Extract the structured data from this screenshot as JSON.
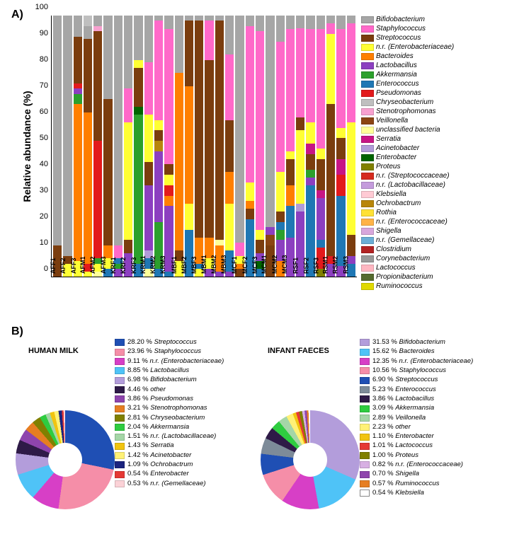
{
  "panelA": {
    "label": "A)",
    "type": "stacked-bar",
    "ylabel": "Relative abundance (%)",
    "ylim": [
      0,
      100
    ],
    "ytick_step": 10,
    "legend": [
      {
        "name": "Bifidobacterium",
        "color": "#a6a6a6"
      },
      {
        "name": "Staphylococcus",
        "color": "#ff69c9"
      },
      {
        "name": "Streptococcus",
        "color": "#7b3d0e"
      },
      {
        "name": "n.r. (Enterobacteriaceae)",
        "color": "#ffff33"
      },
      {
        "name": "Bacteroides",
        "color": "#ff7f00"
      },
      {
        "name": "Lactobacillus",
        "color": "#8c3fc0"
      },
      {
        "name": "Akkermansia",
        "color": "#2ca02c"
      },
      {
        "name": "Enterococcus",
        "color": "#1f77b4"
      },
      {
        "name": "Pseudomonas",
        "color": "#e31a1c"
      },
      {
        "name": "Chryseobacterium",
        "color": "#bfbfbf"
      },
      {
        "name": "Stenotrophomonas",
        "color": "#f7a1cf"
      },
      {
        "name": "Veillonella",
        "color": "#8b4513"
      },
      {
        "name": "unclassified bacteria",
        "color": "#ffff99"
      },
      {
        "name": "Serratia",
        "color": "#c71585"
      },
      {
        "name": "Acinetobacter",
        "color": "#b19cd9"
      },
      {
        "name": "Enterobacter",
        "color": "#006400"
      },
      {
        "name": "Proteus",
        "color": "#808000"
      },
      {
        "name": "n.r. (Streptococcaceae)",
        "color": "#d52b1e"
      },
      {
        "name": "n.r. (Lactobacillaceae)",
        "color": "#c49bdc"
      },
      {
        "name": "Klebsiella",
        "color": "#ffcad4"
      },
      {
        "name": "Ochrobactrum",
        "color": "#b8860b"
      },
      {
        "name": "Rothia",
        "color": "#ffe135"
      },
      {
        "name": "n.r. (Enterococcaceae)",
        "color": "#ffb347"
      },
      {
        "name": "Shigella",
        "color": "#d8a7dc"
      },
      {
        "name": "n.r. (Gemellaceae)",
        "color": "#6baed6"
      },
      {
        "name": "Clostridium",
        "color": "#b22222"
      },
      {
        "name": "Corynebacterium",
        "color": "#999999"
      },
      {
        "name": "Lactococcus",
        "color": "#ffb6c1"
      },
      {
        "name": "Propionibacterium",
        "color": "#556b2f"
      },
      {
        "name": "Ruminococcus",
        "color": "#e0d900"
      }
    ],
    "samples": [
      "AFF1",
      "AFF2",
      "AFF3",
      "AFM1",
      "AFM2",
      "AFM3",
      "KRF1",
      "KRF2",
      "KRF3",
      "KRM1",
      "KRM2",
      "KRM3",
      "MBF1",
      "MBF2",
      "MBF3",
      "MBM1",
      "MBM2",
      "MBM3",
      "MCF1",
      "MCF2",
      "MCF3",
      "MCM1",
      "MCM2",
      "MCM3",
      "RSF1",
      "RSF2",
      "RSF3",
      "RSM1",
      "RSM2",
      "RSM3"
    ],
    "stacks": [
      [
        [
          "Streptococcus",
          12
        ],
        [
          "Bifidobacterium",
          88
        ]
      ],
      [
        [
          "n.r. (Enterobacteriaceae)",
          5
        ],
        [
          "Streptococcus",
          3
        ],
        [
          "Bifidobacterium",
          92
        ]
      ],
      [
        [
          "n.r. (Enterobacteriaceae)",
          6
        ],
        [
          "Bacteroides",
          60
        ],
        [
          "Akkermansia",
          4
        ],
        [
          "Lactobacillus",
          2
        ],
        [
          "Pseudomonas",
          2
        ],
        [
          "Streptococcus",
          18
        ],
        [
          "Bifidobacterium",
          8
        ]
      ],
      [
        [
          "n.r. (Enterobacteriaceae)",
          2
        ],
        [
          "Pseudomonas",
          3
        ],
        [
          "Bacteroides",
          58
        ],
        [
          "Streptococcus",
          28
        ],
        [
          "Bifidobacterium",
          5
        ],
        [
          "Chryseobacterium",
          4
        ]
      ],
      [
        [
          "unclassified bacteria",
          2
        ],
        [
          "n.r. (Enterobacteriaceae)",
          3
        ],
        [
          "Akkermansia",
          2
        ],
        [
          "Pseudomonas",
          45
        ],
        [
          "Streptococcus",
          42
        ],
        [
          "Stenotrophomonas",
          2
        ],
        [
          "Bifidobacterium",
          4
        ]
      ],
      [
        [
          "Enterococcus",
          3
        ],
        [
          "n.r. (Enterobacteriaceae)",
          4
        ],
        [
          "Bacteroides",
          5
        ],
        [
          "Streptococcus",
          56
        ],
        [
          "Bifidobacterium",
          32
        ]
      ],
      [
        [
          "Lactobacillus",
          3
        ],
        [
          "Akkermansia",
          2
        ],
        [
          "Enterococcus",
          2
        ],
        [
          "Staphylococcus",
          5
        ],
        [
          "Bifidobacterium",
          88
        ]
      ],
      [
        [
          "Lactobacillus",
          9
        ],
        [
          "Streptococcus",
          5
        ],
        [
          "n.r. (Enterobacteriaceae)",
          45
        ],
        [
          "Staphylococcus",
          13
        ],
        [
          "Bifidobacterium",
          28
        ]
      ],
      [
        [
          "Enterococcus",
          5
        ],
        [
          "Akkermansia",
          57
        ],
        [
          "Enterobacter",
          3
        ],
        [
          "Streptococcus",
          15
        ],
        [
          "n.r. (Enterobacteriaceae)",
          3
        ],
        [
          "Bifidobacterium",
          17
        ]
      ],
      [
        [
          "unclassified bacteria",
          3
        ],
        [
          "Enterococcus",
          4
        ],
        [
          "Acinetobacter",
          3
        ],
        [
          "Lactobacillus",
          25
        ],
        [
          "Streptococcus",
          9
        ],
        [
          "n.r. (Enterobacteriaceae)",
          18
        ],
        [
          "Staphylococcus",
          20
        ],
        [
          "Bifidobacterium",
          18
        ]
      ],
      [
        [
          "Enterococcus",
          3
        ],
        [
          "Akkermansia",
          18
        ],
        [
          "Lactobacillus",
          27
        ],
        [
          "Ochrobactrum",
          4
        ],
        [
          "Streptococcus",
          4
        ],
        [
          "n.r. (Enterobacteriaceae)",
          4
        ],
        [
          "Staphylococcus",
          38
        ],
        [
          "Bifidobacterium",
          2
        ]
      ],
      [
        [
          "Enterococcus",
          2
        ],
        [
          "Lactobacillus",
          25
        ],
        [
          "Bacteroides",
          4
        ],
        [
          "Pseudomonas",
          4
        ],
        [
          "n.r. (Enterobacteriaceae)",
          4
        ],
        [
          "Streptococcus",
          4
        ],
        [
          "Staphylococcus",
          52
        ],
        [
          "Bifidobacterium",
          5
        ]
      ],
      [
        [
          "n.r. (Enterobacteriaceae)",
          6
        ],
        [
          "Streptococcus",
          4
        ],
        [
          "Bacteroides",
          68
        ],
        [
          "Bifidobacterium",
          22
        ]
      ],
      [
        [
          "Enterococcus",
          18
        ],
        [
          "n.r. (Enterobacteriaceae)",
          10
        ],
        [
          "Bacteroides",
          45
        ],
        [
          "Streptococcus",
          25
        ],
        [
          "Bifidobacterium",
          2
        ]
      ],
      [
        [
          "n.r. (Enterobacteriaceae)",
          3
        ],
        [
          "Enterococcus",
          2
        ],
        [
          "Bacteroides",
          10
        ],
        [
          "Streptococcus",
          83
        ],
        [
          "Bifidobacterium",
          2
        ]
      ],
      [
        [
          "Lactobacillus",
          3
        ],
        [
          "n.r. (Enterobacteriaceae)",
          4
        ],
        [
          "Bacteroides",
          8
        ],
        [
          "Streptococcus",
          68
        ],
        [
          "Staphylococcus",
          15
        ],
        [
          "Bifidobacterium",
          2
        ]
      ],
      [
        [
          "Lactobacillus",
          2
        ],
        [
          "Bacteroides",
          10
        ],
        [
          "unclassified bacteria",
          2
        ],
        [
          "Streptococcus",
          84
        ],
        [
          "Bifidobacterium",
          2
        ]
      ],
      [
        [
          "Lactobacillus",
          2
        ],
        [
          "Enterococcus",
          8
        ],
        [
          "n.r. (Enterobacteriaceae)",
          18
        ],
        [
          "Bacteroides",
          12
        ],
        [
          "Streptococcus",
          20
        ],
        [
          "Staphylococcus",
          25
        ],
        [
          "Bifidobacterium",
          15
        ]
      ],
      [
        [
          "Streptococcus",
          3
        ],
        [
          "Bacteroides",
          2
        ],
        [
          "n.r. (Enterobacteriaceae)",
          3
        ],
        [
          "Staphylococcus",
          5
        ],
        [
          "Bifidobacterium",
          87
        ]
      ],
      [
        [
          "Enterococcus",
          22
        ],
        [
          "Streptococcus",
          4
        ],
        [
          "Bacteroides",
          3
        ],
        [
          "n.r. (Enterobacteriaceae)",
          7
        ],
        [
          "Staphylococcus",
          60
        ],
        [
          "Bifidobacterium",
          4
        ]
      ],
      [
        [
          "Enterococcus",
          3
        ],
        [
          "Enterobacter",
          3
        ],
        [
          "Lactobacillus",
          3
        ],
        [
          "Streptococcus",
          5
        ],
        [
          "n.r. (Enterobacteriaceae)",
          4
        ],
        [
          "Staphylococcus",
          76
        ],
        [
          "Bifidobacterium",
          6
        ]
      ],
      [
        [
          "Streptococcus",
          12
        ],
        [
          "Veillonella",
          4
        ],
        [
          "Lactobacillus",
          3
        ],
        [
          "Bifidobacterium",
          81
        ]
      ],
      [
        [
          "Bacteroides",
          6
        ],
        [
          "Lactobacillus",
          8
        ],
        [
          "Akkermansia",
          4
        ],
        [
          "Enterococcus",
          3
        ],
        [
          "Streptococcus",
          4
        ],
        [
          "n.r. (Enterobacteriaceae)",
          15
        ],
        [
          "Staphylococcus",
          50
        ],
        [
          "Bifidobacterium",
          10
        ]
      ],
      [
        [
          "Lactobacillus",
          15
        ],
        [
          "Enterococcus",
          12
        ],
        [
          "Bacteroides",
          8
        ],
        [
          "Streptococcus",
          10
        ],
        [
          "n.r. (Enterobacteriaceae)",
          3
        ],
        [
          "Staphylococcus",
          47
        ],
        [
          "Bifidobacterium",
          5
        ]
      ],
      [
        [
          "Lactobacillus",
          25
        ],
        [
          "Acinetobacter",
          3
        ],
        [
          "n.r. (Enterobacteriaceae)",
          28
        ],
        [
          "Streptococcus",
          5
        ],
        [
          "Staphylococcus",
          34
        ],
        [
          "Bifidobacterium",
          5
        ]
      ],
      [
        [
          "Enterococcus",
          35
        ],
        [
          "Lactobacillus",
          3
        ],
        [
          "Akkermansia",
          3
        ],
        [
          "Streptococcus",
          6
        ],
        [
          "Serratia",
          4
        ],
        [
          "n.r. (Enterobacteriaceae)",
          8
        ],
        [
          "Staphylococcus",
          36
        ],
        [
          "Bifidobacterium",
          5
        ]
      ],
      [
        [
          "Proteus",
          3
        ],
        [
          "Pseudomonas",
          8
        ],
        [
          "Enterococcus",
          3
        ],
        [
          "Lactobacillus",
          16
        ],
        [
          "Serratia",
          3
        ],
        [
          "Streptococcus",
          12
        ],
        [
          "n.r. (Enterobacteriaceae)",
          4
        ],
        [
          "Staphylococcus",
          46
        ],
        [
          "Bifidobacterium",
          5
        ]
      ],
      [
        [
          "Lactobacillus",
          5
        ],
        [
          "Pseudomonas",
          3
        ],
        [
          "Streptococcus",
          58
        ],
        [
          "n.r. (Enterobacteriaceae)",
          27
        ],
        [
          "Staphylococcus",
          4
        ],
        [
          "Bifidobacterium",
          3
        ]
      ],
      [
        [
          "Lactobacillus",
          4
        ],
        [
          "Enterococcus",
          27
        ],
        [
          "Pseudomonas",
          8
        ],
        [
          "Serratia",
          6
        ],
        [
          "Streptococcus",
          8
        ],
        [
          "n.r. (Enterobacteriaceae)",
          4
        ],
        [
          "Staphylococcus",
          38
        ],
        [
          "Bifidobacterium",
          5
        ]
      ],
      [
        [
          "Enterococcus",
          5
        ],
        [
          "Lactobacillus",
          3
        ],
        [
          "Streptococcus",
          8
        ],
        [
          "n.r. (Enterobacteriaceae)",
          43
        ],
        [
          "Staphylococcus",
          38
        ],
        [
          "Bifidobacterium",
          3
        ]
      ]
    ]
  },
  "panelB": {
    "label": "B)",
    "left": {
      "title": "HUMAN MILK",
      "items": [
        {
          "pct": 28.2,
          "label": "Streptococcus",
          "color": "#1f4fb4"
        },
        {
          "pct": 23.96,
          "label": "Staphylococcus",
          "color": "#f58ea8"
        },
        {
          "pct": 9.11,
          "label": "n.r. (Enterobacteriaceae)",
          "color": "#d73fc6"
        },
        {
          "pct": 8.85,
          "label": "Lactobacillus",
          "color": "#4fc3f7"
        },
        {
          "pct": 6.98,
          "label": "Bifidobacterium",
          "color": "#b39ddb"
        },
        {
          "pct": 4.46,
          "label": "other",
          "color": "#2e1a47"
        },
        {
          "pct": 3.86,
          "label": "Pseudomonas",
          "color": "#8e44ad"
        },
        {
          "pct": 3.21,
          "label": "Stenotrophomonas",
          "color": "#e67e22"
        },
        {
          "pct": 2.81,
          "label": "Chryseobacterium",
          "color": "#808000"
        },
        {
          "pct": 2.04,
          "label": "Akkermansia",
          "color": "#2ecc40"
        },
        {
          "pct": 1.51,
          "label": "n.r. (Lactobacillaceae)",
          "color": "#a5d6a7"
        },
        {
          "pct": 1.43,
          "label": "Serratia",
          "color": "#f1c40f"
        },
        {
          "pct": 1.42,
          "label": "Acinetobacter",
          "color": "#fff176"
        },
        {
          "pct": 1.09,
          "label": "Ochrobactrum",
          "color": "#1a237e"
        },
        {
          "pct": 0.54,
          "label": "Enterobacter",
          "color": "#e53935"
        },
        {
          "pct": 0.53,
          "label": "n.r. (Gemellaceae)",
          "color": "#fbd2d7"
        }
      ]
    },
    "right": {
      "title": "INFANT FAECES",
      "items": [
        {
          "pct": 31.53,
          "label": "Bifidobacterium",
          "color": "#b39ddb"
        },
        {
          "pct": 15.62,
          "label": "Bacteroides",
          "color": "#4fc3f7"
        },
        {
          "pct": 12.35,
          "label": "n.r. (Enterobacteriaceae)",
          "color": "#d73fc6"
        },
        {
          "pct": 10.56,
          "label": "Staphylococcus",
          "color": "#f58ea8"
        },
        {
          "pct": 6.9,
          "label": "Streptococcus",
          "color": "#1f4fb4"
        },
        {
          "pct": 5.23,
          "label": "Enterococcus",
          "color": "#7d8b99"
        },
        {
          "pct": 3.86,
          "label": "Lactobacillus",
          "color": "#2e1a47"
        },
        {
          "pct": 3.09,
          "label": "Akkermansia",
          "color": "#2ecc40"
        },
        {
          "pct": 2.89,
          "label": "Veillonella",
          "color": "#a5d6a7"
        },
        {
          "pct": 2.23,
          "label": "other",
          "color": "#fff176"
        },
        {
          "pct": 1.1,
          "label": "Enterobacter",
          "color": "#f1c40f"
        },
        {
          "pct": 1.01,
          "label": "Lactococcus",
          "color": "#e53935"
        },
        {
          "pct": 1.0,
          "label": "Proteus",
          "color": "#808000"
        },
        {
          "pct": 0.82,
          "label": "n.r. (Enterococcaceae)",
          "color": "#d7b0e3"
        },
        {
          "pct": 0.7,
          "label": "Shigella",
          "color": "#8e44ad"
        },
        {
          "pct": 0.57,
          "label": "Ruminococcus",
          "color": "#e67e22"
        },
        {
          "pct": 0.54,
          "label": "Klebsiella",
          "color": "#ffffff"
        }
      ]
    }
  }
}
